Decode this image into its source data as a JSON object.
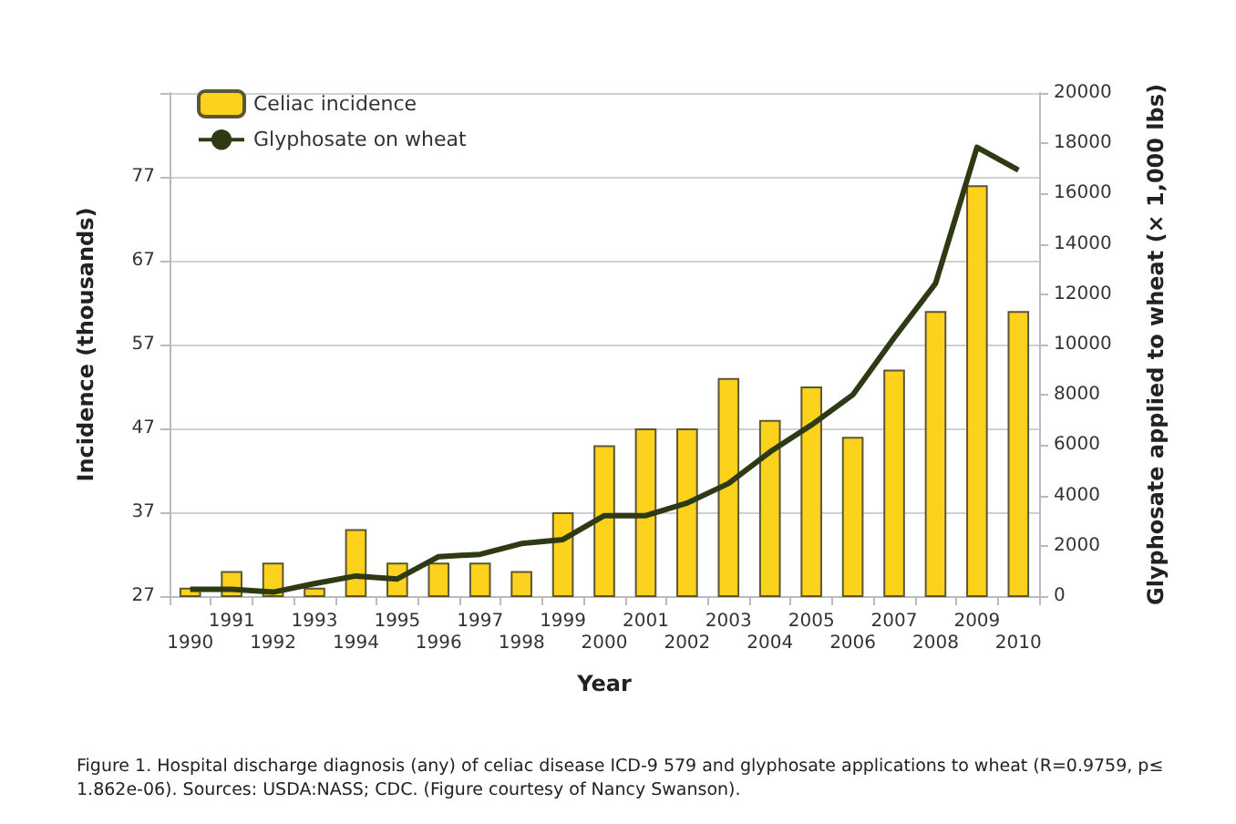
{
  "chart_data": {
    "type": "bar",
    "xlabel": "Year",
    "ylabel": "Incidence (thousands)",
    "y2label": "Glyphosate applied to wheat (× 1,000 lbs)",
    "categories": [
      "1990",
      "1991",
      "1992",
      "1993",
      "1994",
      "1995",
      "1996",
      "1997",
      "1998",
      "1999",
      "2000",
      "2001",
      "2002",
      "2003",
      "2004",
      "2005",
      "2006",
      "2007",
      "2008",
      "2009",
      "2010"
    ],
    "series": [
      {
        "name": "Celiac incidence",
        "color": "#fcd21c",
        "values": [
          28,
          30,
          31,
          28,
          35,
          31,
          31,
          31,
          30,
          37,
          45,
          47,
          47,
          53,
          48,
          52,
          46,
          54,
          61,
          76,
          61
        ]
      },
      {
        "name": "Glyphosate on wheat",
        "type": "line",
        "axis": "y2",
        "color": "#2e3a14",
        "values": [
          270,
          270,
          160,
          500,
          800,
          680,
          1570,
          1660,
          2090,
          2250,
          3200,
          3200,
          3700,
          4480,
          5730,
          6800,
          8000,
          10270,
          12430,
          17840,
          16930
        ]
      }
    ],
    "ylim": [
      27,
      87
    ],
    "yticks": [
      27,
      37,
      47,
      57,
      67,
      77,
      {
        "value": 87,
        "label": null
      }
    ],
    "y2lim": [
      0,
      20000
    ],
    "y2ticks": [
      0,
      2000,
      4000,
      6000,
      8000,
      10000,
      12000,
      14000,
      16000,
      18000,
      20000
    ],
    "grid": "y",
    "legend": "top left",
    "marker": "none",
    "line_style": "solid",
    "annotations": [
      "Figure 1. Hospital discharge diagnosis (any) of celiac disease ICD-9 579 and glyphosate applications to wheat (R=0.9759, p≤1.862e-06). Sources: USDA:NASS; CDC. (Figure courtesy of Nancy Swanson)."
    ]
  }
}
